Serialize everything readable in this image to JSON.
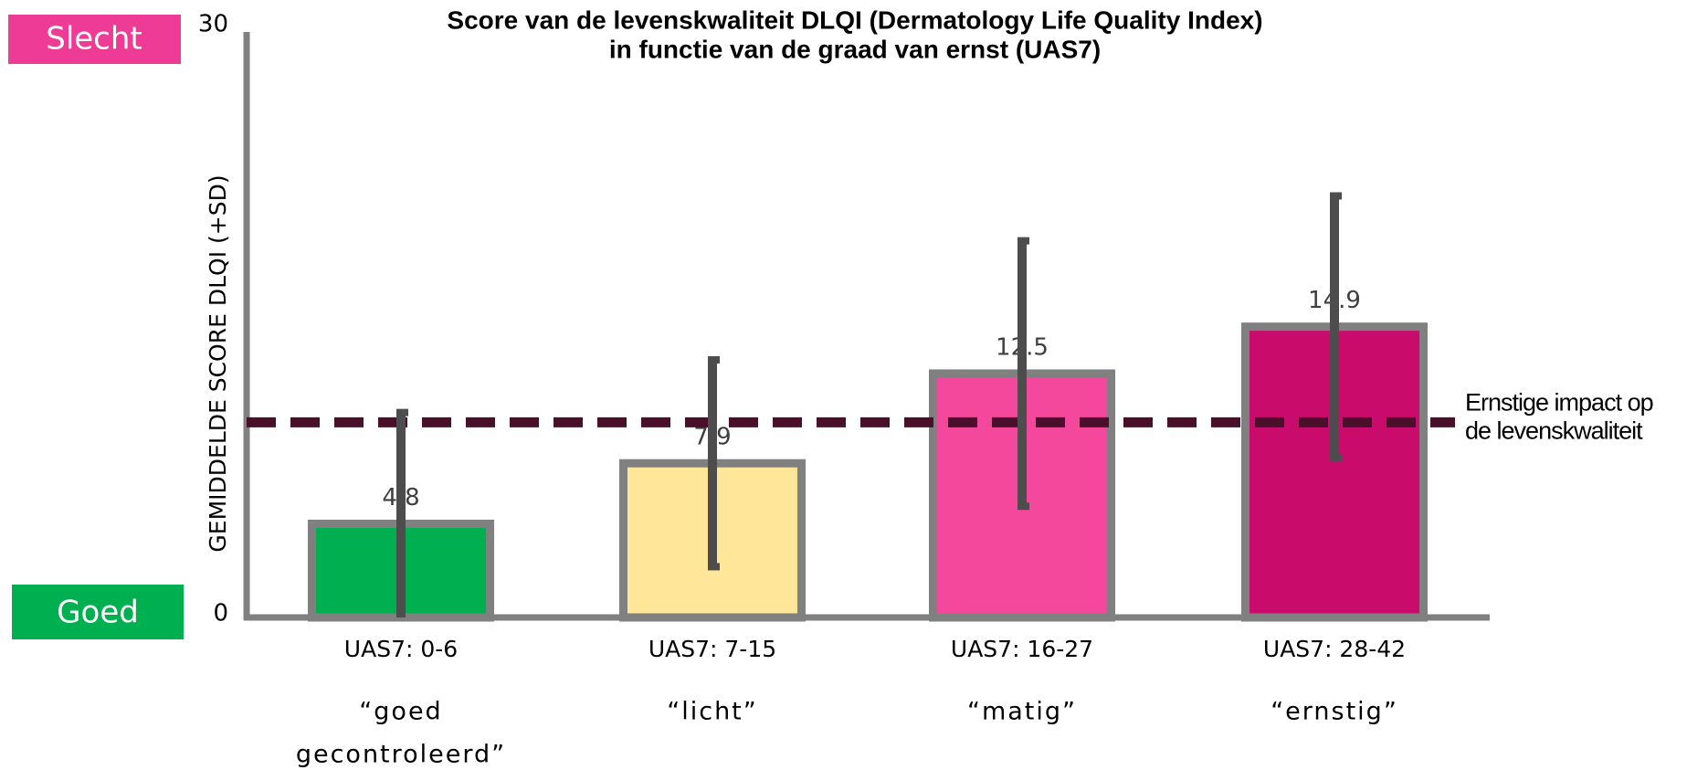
{
  "chart_data": {
    "type": "bar",
    "title": [
      "Score van de levenskwaliteit DLQI (Dermatology Life Quality Index)",
      "in functie van de graad van ernst (UAS7)"
    ],
    "y_label": "GEMIDDELDE SCORE DLQI  (+SD)",
    "top_label": "Slecht",
    "bottom_label": "Goed",
    "categories": [
      "UAS7: 0-6",
      "UAS7: 7-15",
      "UAS7: 16-27",
      "UAS7: 28-42"
    ],
    "descriptions": [
      [
        "“goed",
        "gecontroleerd”"
      ],
      [
        "“licht”"
      ],
      [
        "“matig”"
      ],
      [
        "“ernstig”"
      ]
    ],
    "values": [
      4.8,
      7.9,
      12.5,
      14.9
    ],
    "errors": [
      5.7,
      5.3,
      6.8,
      6.7
    ],
    "colors": [
      "#00b050",
      "#ffe699",
      "#f4489c",
      "#c90c6c"
    ],
    "threshold": 10,
    "annotation": [
      "Ernstige impact op",
      "de levenskwaliteit"
    ],
    "ylim": [
      0,
      30
    ],
    "yticks": [
      0,
      30
    ],
    "grid": false
  }
}
